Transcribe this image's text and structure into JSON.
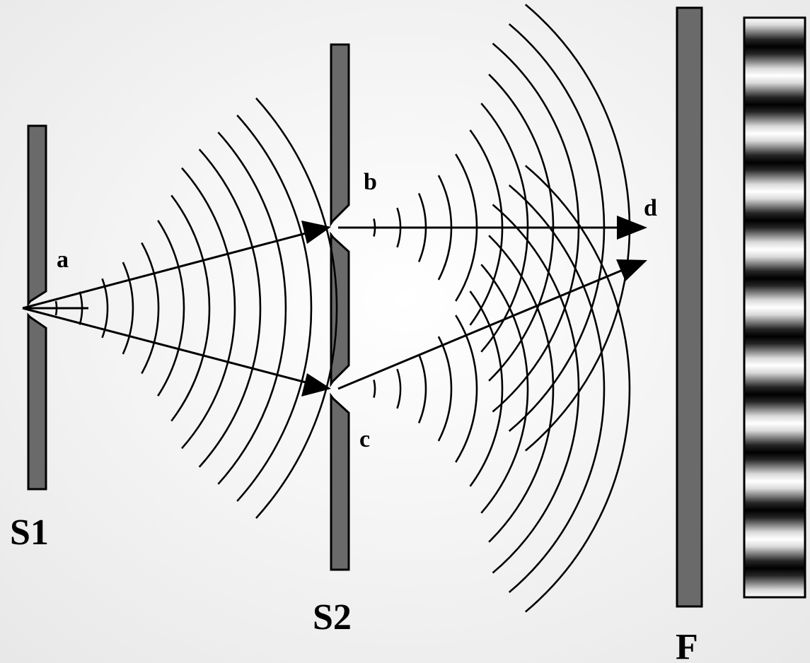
{
  "labels": {
    "a": "a",
    "b": "b",
    "c": "c",
    "d": "d",
    "s1": "S1",
    "s2": "S2",
    "f": "F"
  },
  "pattern": {
    "fringes": 10,
    "dark_color": "#000000",
    "light_color": "#ffffff"
  },
  "colors": {
    "barrier_fill": "#6a6a6a",
    "line": "#000000",
    "background": "#f4f4f4"
  }
}
